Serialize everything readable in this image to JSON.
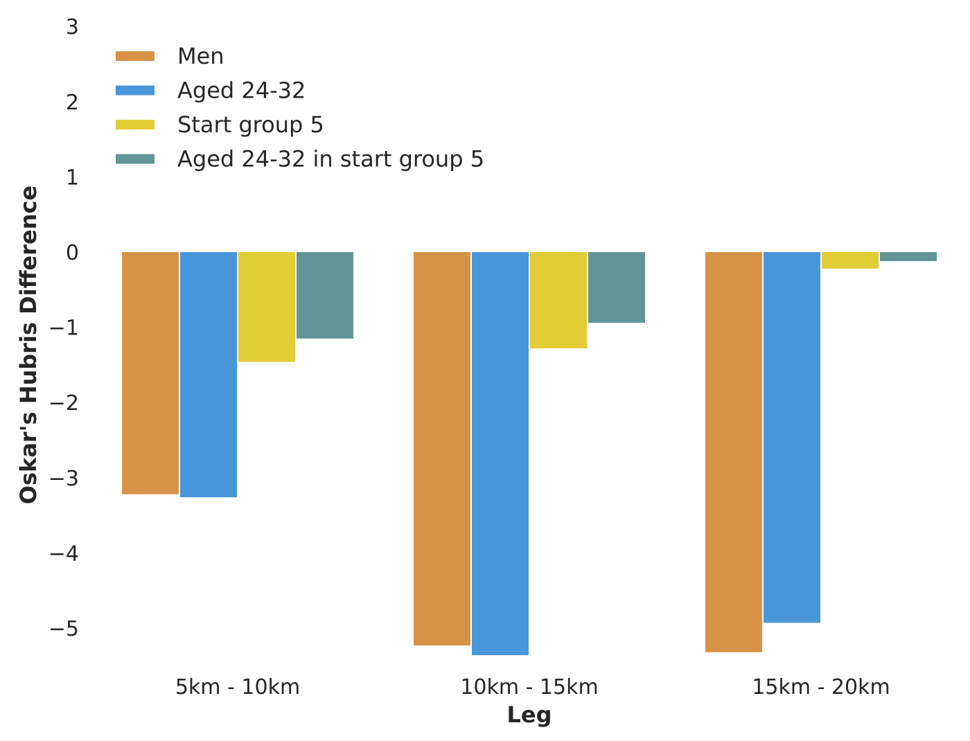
{
  "chart_data": {
    "type": "bar",
    "categories": [
      "5km - 10km",
      "10km - 15km",
      "15km - 20km"
    ],
    "series": [
      {
        "name": "Men",
        "color": "#d89247",
        "values": [
          -3.22,
          -5.23,
          -5.32
        ]
      },
      {
        "name": "Aged 24-32",
        "color": "#4896d8",
        "values": [
          -3.26,
          -5.36,
          -4.93
        ]
      },
      {
        "name": "Start group 5",
        "color": "#e2cd36",
        "values": [
          -1.46,
          -1.28,
          -0.22
        ]
      },
      {
        "name": "Aged 24-32 in start group 5",
        "color": "#629595",
        "values": [
          -1.15,
          -0.94,
          -0.12
        ]
      }
    ],
    "xlabel": "Leg",
    "ylabel": "Oskar's Hubris Difference",
    "ylim": [
      -5.5,
      3
    ],
    "yticks": [
      3,
      2,
      1,
      0,
      -1,
      -2,
      -3,
      -4,
      -5
    ],
    "ytick_labels": [
      "3",
      "2",
      "1",
      "0",
      "−1",
      "−2",
      "−3",
      "−4",
      "−5"
    ],
    "grid": false,
    "legend_position": "top-left"
  }
}
